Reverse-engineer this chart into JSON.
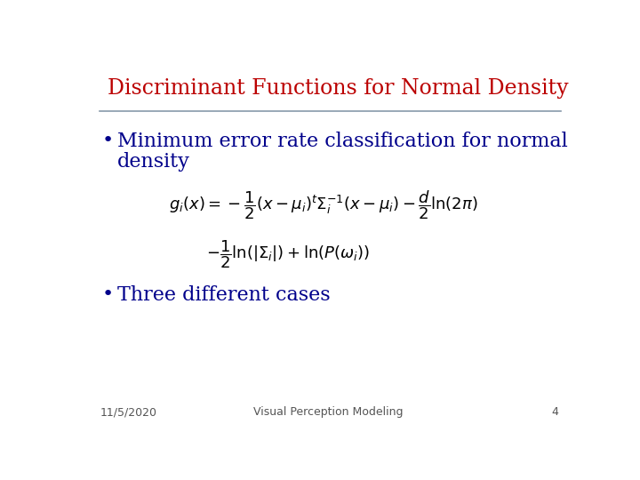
{
  "title": "Discriminant Functions for Normal Density",
  "title_color": "#BB0000",
  "title_fontsize": 17,
  "bullet_color": "#00008B",
  "bullet1_line1": "Minimum error rate classification for normal",
  "bullet1_line2": "density",
  "bullet2": "Three different cases",
  "bullet_fontsize": 16,
  "formula_line1": "$g_i(x) = -\\dfrac{1}{2}(x - \\mu_i)^t \\Sigma_i^{-1}(x - \\mu_i) - \\dfrac{d}{2}\\ln(2\\pi)$",
  "formula_line2": "$-\\dfrac{1}{2}\\ln(|\\Sigma_i|) + \\ln(P(\\omega_i))$",
  "formula_color": "#000000",
  "formula_fontsize": 13,
  "footer_date": "11/5/2020",
  "footer_center": "Visual Perception Modeling",
  "footer_page": "4",
  "footer_fontsize": 9,
  "footer_color": "#555555",
  "line_color": "#8899AA",
  "bg_color": "#FFFFFF"
}
